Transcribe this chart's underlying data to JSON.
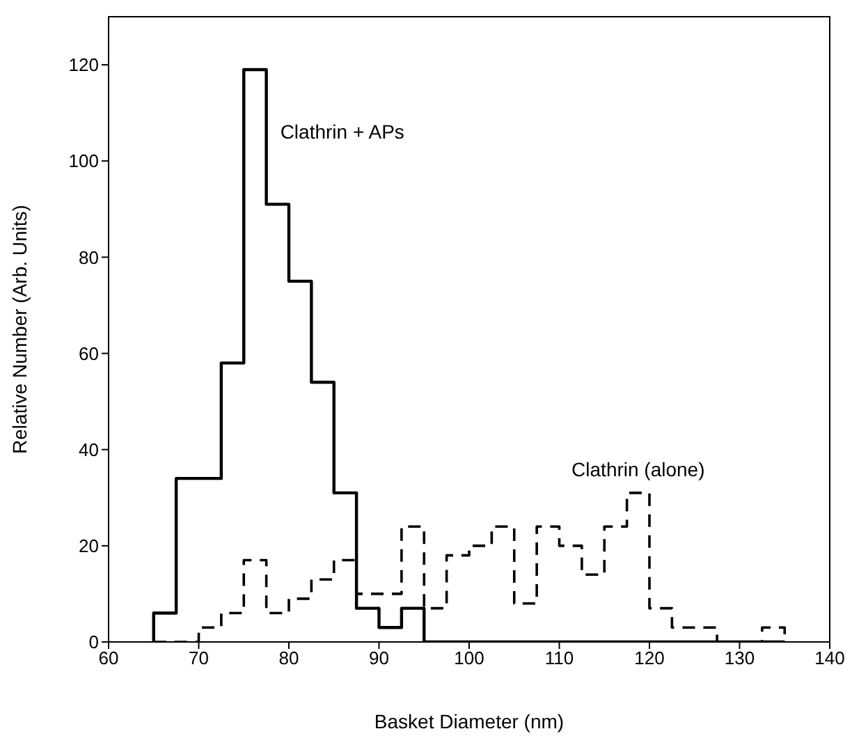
{
  "chart_data": {
    "type": "histogram",
    "xlabel": "Basket Diameter (nm)",
    "ylabel": "Relative Number (Arb. Units)",
    "bins": [
      65,
      67.5,
      70,
      72.5,
      75,
      77.5,
      80,
      82.5,
      85,
      87.5,
      90,
      92.5,
      95,
      97.5,
      100,
      102.5,
      105,
      107.5,
      110,
      112.5,
      115,
      117.5,
      120,
      122.5,
      125,
      127.5,
      130,
      132.5,
      135
    ],
    "series": [
      {
        "name": "Clathrin + APs",
        "color": "#000000",
        "line_style": "solid",
        "values": [
          6,
          34,
          34,
          58,
          119,
          91,
          75,
          54,
          31,
          7,
          3,
          7,
          0,
          0,
          0,
          0,
          0,
          0,
          0,
          0,
          0,
          0,
          0,
          0,
          0,
          0,
          0,
          0
        ]
      },
      {
        "name": "Clathrin (alone)",
        "color": "#000000",
        "line_style": "dashed",
        "values": [
          0,
          0,
          3,
          6,
          17,
          6,
          9,
          13,
          17,
          10,
          10,
          24,
          7,
          18,
          20,
          24,
          8,
          24,
          20,
          14,
          24,
          31,
          7,
          3,
          3,
          0,
          0,
          3
        ]
      }
    ],
    "xlim": [
      60,
      140
    ],
    "xticks": [
      60,
      70,
      80,
      90,
      100,
      110,
      120,
      130,
      140
    ],
    "ylim": [
      0,
      130
    ],
    "yticks": [
      0,
      20,
      40,
      60,
      80,
      100,
      120
    ],
    "grid": false,
    "legend": false
  }
}
